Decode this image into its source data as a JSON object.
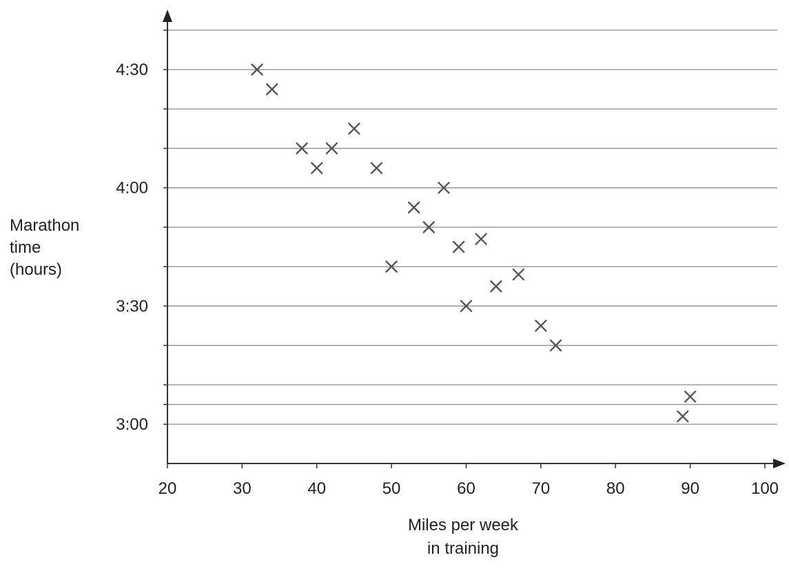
{
  "chart_data": {
    "type": "scatter",
    "title": "",
    "xlabel": [
      "Miles per week",
      "in training"
    ],
    "ylabel": [
      "Marathon",
      "time",
      "(hours)"
    ],
    "xlim": [
      20,
      100
    ],
    "ylim_minutes": [
      170,
      305
    ],
    "x_ticks": [
      20,
      30,
      40,
      50,
      60,
      70,
      80,
      90,
      100
    ],
    "x_tick_labels": [
      "20",
      "30",
      "40",
      "50",
      "60",
      "70",
      "80",
      "90",
      "100"
    ],
    "y_ticks_minutes": [
      180,
      210,
      240,
      270
    ],
    "y_tick_labels": [
      "3:00",
      "3:30",
      "4:00",
      "4:30"
    ],
    "y_gridlines_minutes": [
      180,
      185,
      190,
      200,
      210,
      220,
      230,
      240,
      250,
      260,
      270,
      280,
      290,
      300
    ],
    "grid": true,
    "legend": "none",
    "marker": "x",
    "marker_color": "#555555",
    "points": [
      {
        "x": 32,
        "y": "4:30"
      },
      {
        "x": 34,
        "y": "4:25"
      },
      {
        "x": 38,
        "y": "4:10"
      },
      {
        "x": 40,
        "y": "4:05"
      },
      {
        "x": 42,
        "y": "4:10"
      },
      {
        "x": 45,
        "y": "4:15"
      },
      {
        "x": 48,
        "y": "4:05"
      },
      {
        "x": 50,
        "y": "3:40"
      },
      {
        "x": 53,
        "y": "3:55"
      },
      {
        "x": 55,
        "y": "3:50"
      },
      {
        "x": 57,
        "y": "4:00"
      },
      {
        "x": 59,
        "y": "3:45"
      },
      {
        "x": 60,
        "y": "3:30"
      },
      {
        "x": 62,
        "y": "3:47"
      },
      {
        "x": 64,
        "y": "3:35"
      },
      {
        "x": 67,
        "y": "3:38"
      },
      {
        "x": 70,
        "y": "3:25"
      },
      {
        "x": 72,
        "y": "3:20"
      },
      {
        "x": 89,
        "y": "3:02"
      },
      {
        "x": 90,
        "y": "3:07"
      }
    ]
  }
}
